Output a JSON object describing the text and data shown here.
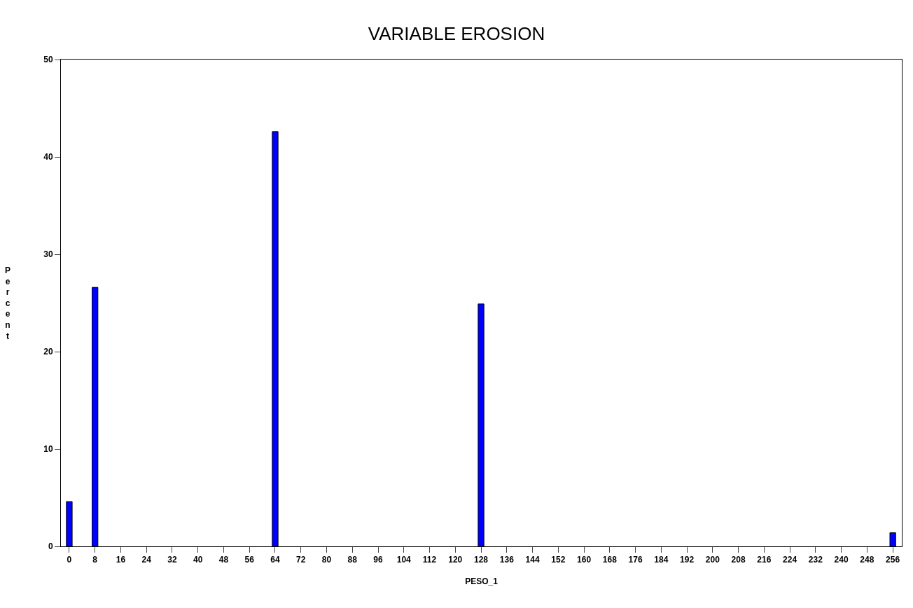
{
  "chart_data": {
    "type": "bar",
    "title": "VARIABLE EROSION",
    "xlabel": "PESO_1",
    "ylabel": "Percent",
    "x": [
      0,
      8,
      64,
      128,
      256
    ],
    "values": [
      4.6,
      26.6,
      42.6,
      24.9,
      1.4
    ],
    "color": "#0000ff",
    "xlim": [
      -2.6,
      258.8
    ],
    "xticks": [
      0,
      8,
      16,
      24,
      32,
      40,
      48,
      56,
      64,
      72,
      80,
      88,
      96,
      104,
      112,
      120,
      128,
      136,
      144,
      152,
      160,
      168,
      176,
      184,
      192,
      200,
      208,
      216,
      224,
      232,
      240,
      248,
      256
    ],
    "ylim": [
      0,
      50
    ],
    "yticks": [
      0,
      10,
      20,
      30,
      40,
      50
    ],
    "grid": false
  }
}
